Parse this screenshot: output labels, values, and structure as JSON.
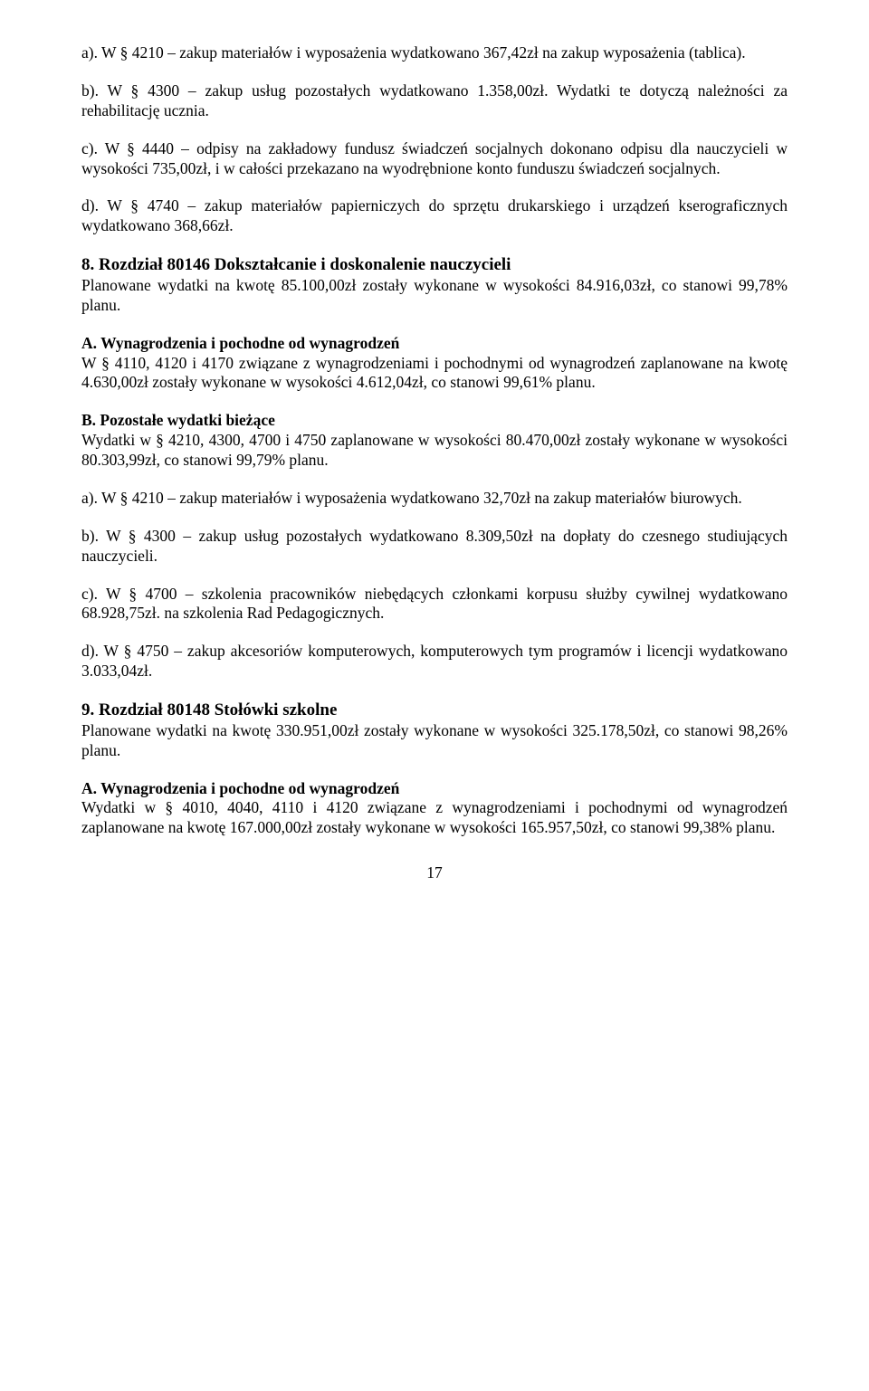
{
  "p1": "a). W § 4210 – zakup materiałów i wyposażenia wydatkowano 367,42zł na zakup wyposażenia (tablica).",
  "p2": "b). W § 4300 – zakup usług pozostałych wydatkowano 1.358,00zł. Wydatki te dotyczą należności za rehabilitację ucznia.",
  "p3": "c). W § 4440 – odpisy na zakładowy fundusz świadczeń socjalnych dokonano odpisu dla nauczycieli w wysokości 735,00zł, i w całości przekazano na wyodrębnione konto funduszu świadczeń socjalnych.",
  "p4": "d). W § 4740 – zakup materiałów papierniczych do sprzętu drukarskiego i urządzeń kserograficznych wydatkowano 368,66zł.",
  "h8": "8. Rozdział 80146 Dokształcanie i doskonalenie nauczycieli",
  "p5": "Planowane wydatki na kwotę 85.100,00zł zostały wykonane w wysokości 84.916,03zł, co stanowi 99,78% planu.",
  "subA1": "A. Wynagrodzenia i pochodne od wynagrodzeń",
  "p6": "W § 4110, 4120 i 4170 związane z wynagrodzeniami i pochodnymi od wynagrodzeń zaplanowane na kwotę 4.630,00zł zostały wykonane w wysokości 4.612,04zł, co stanowi 99,61% planu.",
  "subB1": "B. Pozostałe wydatki bieżące",
  "p7": "Wydatki w § 4210, 4300, 4700 i 4750 zaplanowane w wysokości 80.470,00zł zostały wykonane w wysokości 80.303,99zł, co stanowi 99,79% planu.",
  "p8": "a). W § 4210 – zakup materiałów i wyposażenia wydatkowano 32,70zł na zakup materiałów biurowych.",
  "p9": "b). W § 4300 – zakup usług pozostałych wydatkowano 8.309,50zł na dopłaty do czesnego studiujących nauczycieli.",
  "p10": "c). W § 4700 – szkolenia pracowników niebędących członkami korpusu służby cywilnej wydatkowano 68.928,75zł. na szkolenia Rad Pedagogicznych.",
  "p11": "d). W § 4750 – zakup akcesoriów komputerowych, komputerowych tym programów i licencji wydatkowano 3.033,04zł.",
  "h9": "9. Rozdział 80148 Stołówki szkolne",
  "p12": "Planowane wydatki na kwotę 330.951,00zł zostały wykonane w wysokości 325.178,50zł, co stanowi 98,26% planu.",
  "subA2": "A. Wynagrodzenia i pochodne od wynagrodzeń",
  "p13": "Wydatki w § 4010, 4040, 4110 i 4120 związane z wynagrodzeniami i pochodnymi od wynagrodzeń zaplanowane na kwotę 167.000,00zł zostały wykonane w wysokości 165.957,50zł, co stanowi 99,38% planu.",
  "pagenum": "17"
}
